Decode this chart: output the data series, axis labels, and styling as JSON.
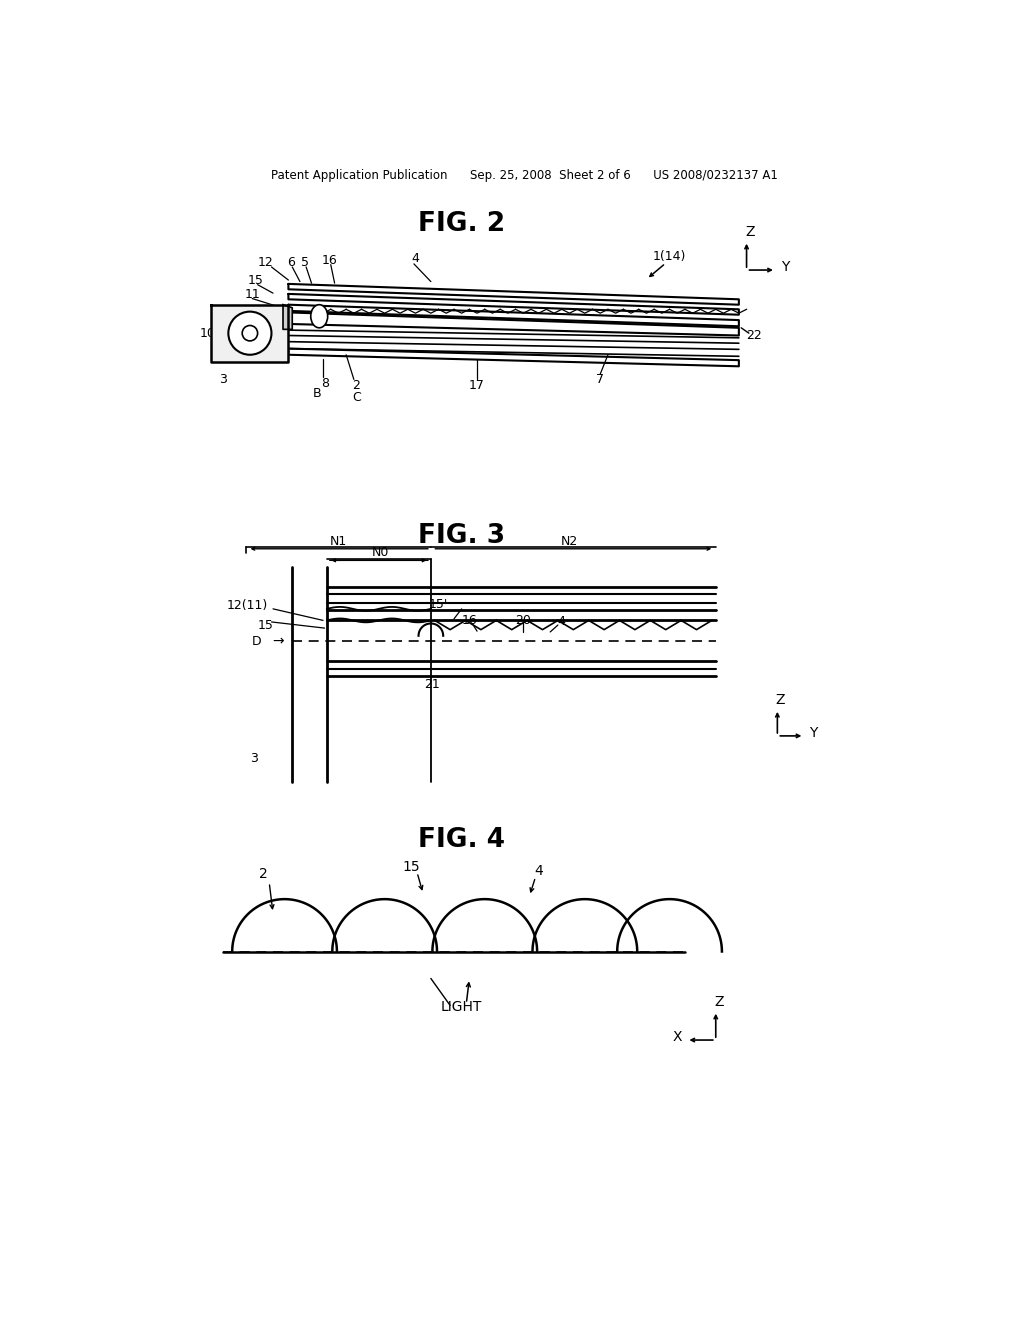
{
  "bg_color": "#ffffff",
  "text_color": "#000000",
  "header": "Patent Application Publication      Sep. 25, 2008  Sheet 2 of 6      US 2008/0232137 A1",
  "fig2_title": "FIG. 2",
  "fig3_title": "FIG. 3",
  "fig4_title": "FIG. 4"
}
